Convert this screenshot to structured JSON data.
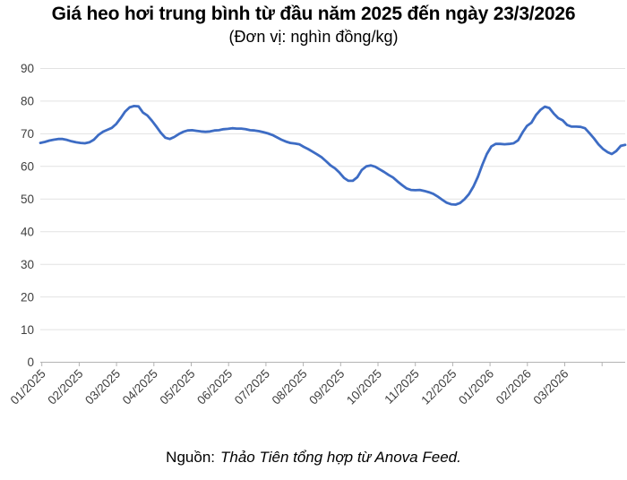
{
  "title": "Giá heo hơi trung bình từ đầu năm 2025 đến ngày 23/3/2026",
  "subtitle": "(Đơn vị: nghìn đồng/kg)",
  "source": {
    "prefix": "Nguồn:",
    "text": "Thảo Tiên tổng hợp từ Anova Feed."
  },
  "colors": {
    "line": "#3d6cc4",
    "grid": "#e2e2e2",
    "axis": "#b3b3b3",
    "tick_label": "#3f3f3f"
  },
  "chart_data": {
    "type": "line",
    "title": "Giá heo hơi trung bình từ đầu năm 2025 đến ngày 23/3/2026",
    "subtitle": "(Đơn vị: nghìn đồng/kg)",
    "xlabel": "",
    "ylabel": "",
    "ylim": [
      0,
      90
    ],
    "y_ticks": [
      0,
      10,
      20,
      30,
      40,
      50,
      60,
      70,
      80,
      90
    ],
    "x_tick_labels": [
      "01/2025",
      "02/2025",
      "03/2025",
      "04/2025",
      "05/2025",
      "06/2025",
      "07/2025",
      "08/2025",
      "09/2025",
      "10/2025",
      "11/2025",
      "12/2025",
      "01/2026",
      "02/2026",
      "03/2026"
    ],
    "grid": "horizontal",
    "legend": "none",
    "x_note": "values evenly spaced in time from 01/2025 to 23/3/2026",
    "series": [
      {
        "name": "Giá heo hơi trung bình (nghìn đồng/kg)",
        "color": "#3d6cc4",
        "values": [
          67.2,
          67.5,
          67.9,
          68.2,
          68.4,
          68.4,
          68.1,
          67.7,
          67.4,
          67.2,
          67.1,
          67.4,
          68.2,
          69.6,
          70.6,
          71.2,
          71.8,
          73.0,
          74.8,
          76.8,
          78.1,
          78.5,
          78.4,
          76.5,
          75.6,
          74.0,
          72.2,
          70.3,
          68.8,
          68.4,
          69.0,
          69.9,
          70.6,
          71.0,
          71.1,
          70.9,
          70.7,
          70.6,
          70.7,
          71.0,
          71.1,
          71.4,
          71.5,
          71.7,
          71.6,
          71.6,
          71.4,
          71.1,
          71.0,
          70.8,
          70.5,
          70.1,
          69.6,
          68.9,
          68.2,
          67.6,
          67.2,
          67.0,
          66.8,
          66.0,
          65.3,
          64.5,
          63.7,
          62.8,
          61.6,
          60.3,
          59.4,
          58.1,
          56.5,
          55.6,
          55.6,
          56.7,
          58.9,
          60.0,
          60.3,
          59.9,
          59.1,
          58.3,
          57.4,
          56.6,
          55.4,
          54.3,
          53.3,
          52.8,
          52.7,
          52.8,
          52.5,
          52.1,
          51.6,
          50.8,
          49.8,
          48.9,
          48.4,
          48.3,
          48.8,
          49.9,
          51.5,
          53.8,
          56.8,
          60.5,
          63.8,
          66.1,
          66.9,
          66.9,
          66.8,
          66.9,
          67.1,
          68.0,
          70.4,
          72.4,
          73.4,
          75.7,
          77.3,
          78.3,
          77.9,
          76.2,
          74.8,
          74.1,
          72.7,
          72.2,
          72.2,
          72.1,
          71.7,
          70.2,
          68.6,
          66.8,
          65.4,
          64.4,
          63.8,
          64.7,
          66.3,
          66.6
        ]
      }
    ]
  }
}
